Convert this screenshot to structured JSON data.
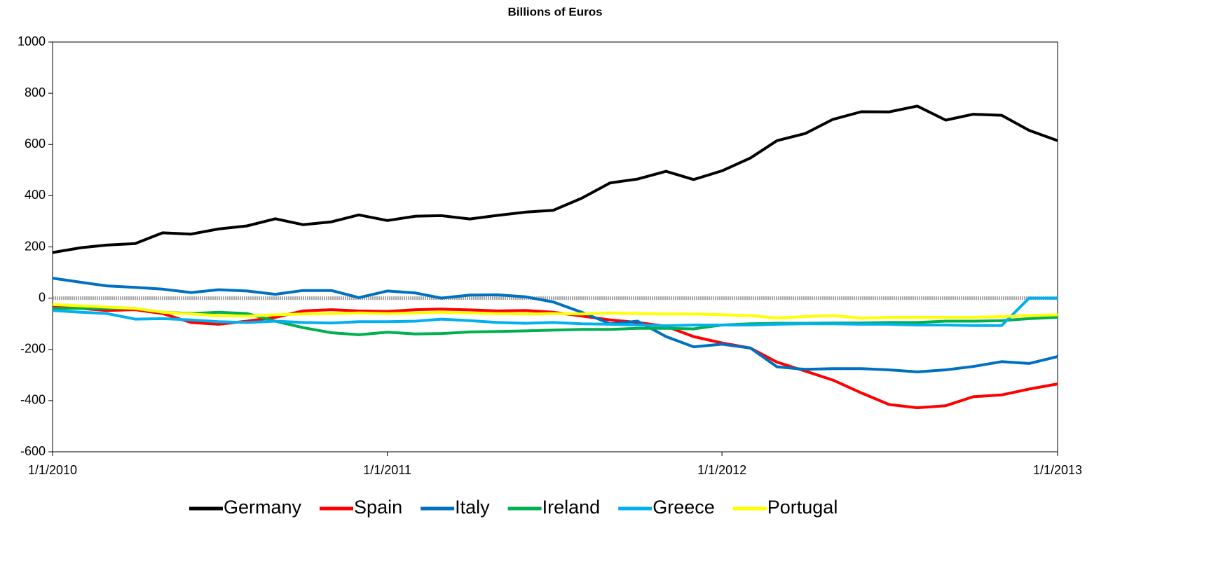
{
  "chart_data": {
    "type": "line",
    "title": "Billions of Euros",
    "x": [
      "2010-01-01",
      "2010-02-01",
      "2010-03-01",
      "2010-04-01",
      "2010-05-01",
      "2010-06-01",
      "2010-07-01",
      "2010-08-01",
      "2010-09-01",
      "2010-10-01",
      "2010-11-01",
      "2010-12-01",
      "2011-01-01",
      "2011-02-01",
      "2011-03-01",
      "2011-04-01",
      "2011-05-01",
      "2011-06-01",
      "2011-07-01",
      "2011-08-01",
      "2011-09-01",
      "2011-10-01",
      "2011-11-01",
      "2011-12-01",
      "2012-01-01",
      "2012-02-01",
      "2012-03-01",
      "2012-04-01",
      "2012-05-01",
      "2012-06-01",
      "2012-07-01",
      "2012-08-01",
      "2012-09-01",
      "2012-10-01",
      "2012-11-01",
      "2012-12-01",
      "2013-01-01"
    ],
    "xlim": [
      "2010-01-01",
      "2013-01-01"
    ],
    "xticks": [
      {
        "value": "2010-01-01",
        "label": "1/1/2010"
      },
      {
        "value": "2011-01-01",
        "label": "1/1/2011"
      },
      {
        "value": "2012-01-01",
        "label": "1/1/2012"
      },
      {
        "value": "2013-01-01",
        "label": "1/1/2013"
      }
    ],
    "ylim": [
      -600,
      1000
    ],
    "yticks": [
      -600,
      -400,
      -200,
      0,
      200,
      400,
      600,
      800,
      1000
    ],
    "grid": false,
    "legend": "bottom",
    "series": [
      {
        "name": "Germany",
        "color": "#000000",
        "values": [
          178,
          197,
          207,
          213,
          255,
          250,
          270,
          282,
          310,
          287,
          298,
          325,
          303,
          320,
          322,
          309,
          323,
          336,
          343,
          390,
          450,
          465,
          495,
          463,
          497,
          547,
          615,
          643,
          698,
          728,
          727,
          750,
          695,
          718,
          714,
          655,
          615
        ]
      },
      {
        "name": "Spain",
        "color": "#ff0000",
        "values": [
          -35,
          -40,
          -48,
          -45,
          -60,
          -95,
          -102,
          -90,
          -75,
          -50,
          -45,
          -50,
          -52,
          -45,
          -43,
          -46,
          -50,
          -48,
          -55,
          -70,
          -85,
          -95,
          -110,
          -150,
          -175,
          -195,
          -250,
          -285,
          -320,
          -370,
          -415,
          -428,
          -420,
          -385,
          -378,
          -355,
          -335
        ]
      },
      {
        "name": "Italy",
        "color": "#0070c0",
        "values": [
          78,
          62,
          48,
          42,
          35,
          22,
          33,
          28,
          15,
          30,
          30,
          2,
          28,
          20,
          0,
          12,
          13,
          5,
          -15,
          -55,
          -100,
          -90,
          -150,
          -190,
          -180,
          -195,
          -268,
          -278,
          -275,
          -275,
          -280,
          -288,
          -280,
          -267,
          -248,
          -255,
          -228
        ]
      },
      {
        "name": "Ireland",
        "color": "#00b050",
        "values": [
          -40,
          -40,
          -40,
          -40,
          -55,
          -60,
          -55,
          -60,
          -90,
          -115,
          -135,
          -143,
          -133,
          -140,
          -138,
          -132,
          -130,
          -128,
          -125,
          -122,
          -122,
          -118,
          -118,
          -120,
          -105,
          -100,
          -98,
          -98,
          -97,
          -97,
          -95,
          -95,
          -90,
          -90,
          -88,
          -80,
          -75
        ]
      },
      {
        "name": "Greece",
        "color": "#00b0f0",
        "values": [
          -48,
          -55,
          -60,
          -82,
          -80,
          -85,
          -92,
          -95,
          -90,
          -95,
          -97,
          -92,
          -92,
          -90,
          -82,
          -88,
          -95,
          -98,
          -95,
          -100,
          -102,
          -105,
          -108,
          -105,
          -105,
          -105,
          -102,
          -100,
          -100,
          -102,
          -102,
          -105,
          -105,
          -107,
          -107,
          0,
          0
        ]
      },
      {
        "name": "Portugal",
        "color": "#ffff00",
        "values": [
          -25,
          -30,
          -35,
          -40,
          -55,
          -62,
          -68,
          -70,
          -65,
          -62,
          -60,
          -58,
          -60,
          -58,
          -55,
          -58,
          -60,
          -62,
          -60,
          -62,
          -58,
          -60,
          -62,
          -62,
          -65,
          -68,
          -78,
          -72,
          -68,
          -78,
          -75,
          -75,
          -75,
          -75,
          -72,
          -68,
          -65
        ]
      }
    ]
  }
}
